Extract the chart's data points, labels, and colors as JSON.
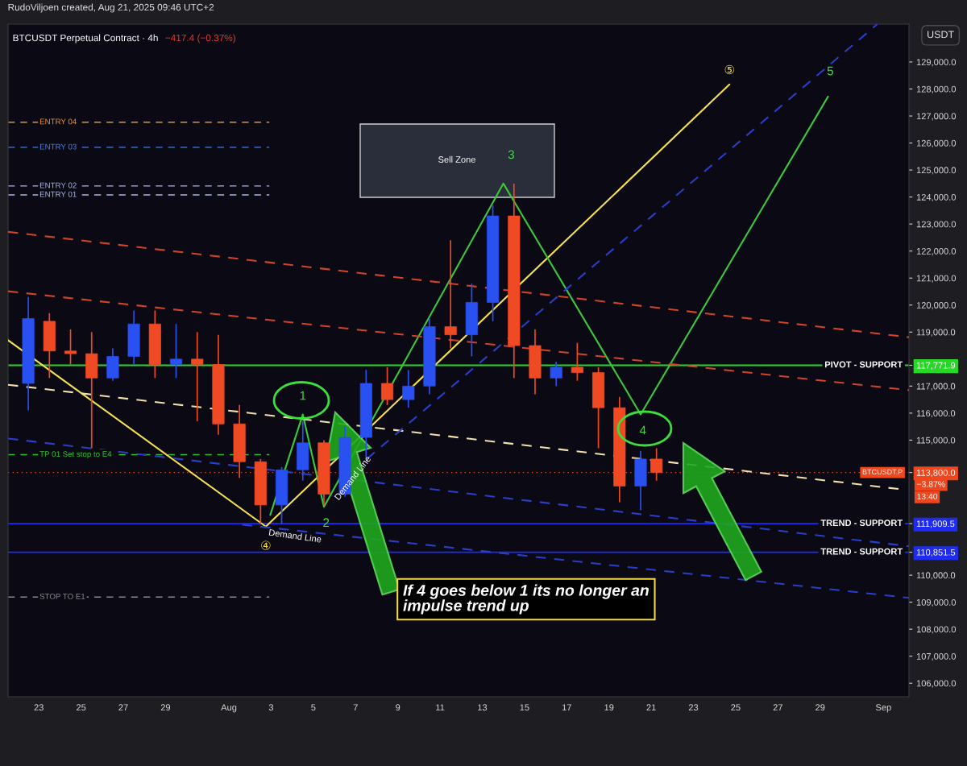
{
  "chart_data": {
    "type": "candlestick",
    "title": "BTCUSDT Perpetual Contract · 4h",
    "subtitle": "−417.4 (−0.37%)",
    "ylabel": "USDT",
    "x": [
      "2025-07-22T12:00",
      "2025-07-23T12:00",
      "2025-07-24T12:00",
      "2025-07-25T12:00",
      "2025-07-26T12:00",
      "2025-07-27T12:00",
      "2025-07-28T12:00",
      "2025-07-29T12:00",
      "2025-07-30T12:00",
      "2025-07-31T12:00",
      "2025-08-01T12:00",
      "2025-08-02T12:00",
      "2025-08-03T12:00",
      "2025-08-04T12:00",
      "2025-08-05T12:00",
      "2025-08-06T12:00",
      "2025-08-07T12:00",
      "2025-08-08T12:00",
      "2025-08-09T12:00",
      "2025-08-10T12:00",
      "2025-08-11T12:00",
      "2025-08-12T12:00",
      "2025-08-13T12:00",
      "2025-08-14T12:00",
      "2025-08-15T12:00",
      "2025-08-16T12:00",
      "2025-08-17T12:00",
      "2025-08-18T12:00",
      "2025-08-19T12:00",
      "2025-08-20T12:00",
      "2025-08-21T06:00"
    ],
    "ohlc": [
      [
        117100,
        120300,
        116100,
        119500
      ],
      [
        119400,
        119700,
        117300,
        118300
      ],
      [
        118300,
        119100,
        117800,
        118200
      ],
      [
        118200,
        119000,
        114700,
        117300
      ],
      [
        117300,
        118400,
        117200,
        118100
      ],
      [
        118100,
        119800,
        117800,
        119300
      ],
      [
        119300,
        119800,
        117300,
        117800
      ],
      [
        117800,
        119300,
        117300,
        118000
      ],
      [
        118000,
        119000,
        115700,
        117800
      ],
      [
        117800,
        118900,
        115200,
        115600
      ],
      [
        115600,
        116300,
        113600,
        114200
      ],
      [
        114200,
        114300,
        111900,
        112600
      ],
      [
        112600,
        114000,
        111900,
        113900
      ],
      [
        113900,
        115700,
        113500,
        114900
      ],
      [
        114900,
        115000,
        112600,
        113000
      ],
      [
        113000,
        115500,
        112900,
        115100
      ],
      [
        115100,
        117600,
        114300,
        117100
      ],
      [
        117100,
        117700,
        116300,
        116500
      ],
      [
        116500,
        117600,
        116200,
        117000
      ],
      [
        117000,
        119500,
        116700,
        119200
      ],
      [
        119200,
        122400,
        118400,
        118900
      ],
      [
        118900,
        120800,
        118100,
        120100
      ],
      [
        120100,
        123700,
        119400,
        123300
      ],
      [
        123300,
        124500,
        117300,
        118500
      ],
      [
        118500,
        119100,
        116700,
        117300
      ],
      [
        117300,
        117900,
        117000,
        117700
      ],
      [
        117700,
        118600,
        117200,
        117500
      ],
      [
        117500,
        117700,
        114700,
        116200
      ],
      [
        116200,
        116600,
        112700,
        113300
      ],
      [
        113300,
        114600,
        112400,
        114300
      ],
      [
        114300,
        114700,
        113500,
        113800
      ]
    ],
    "colors": [
      "#2950f0",
      "#f04a24",
      "#f04a24",
      "#f04a24",
      "#2950f0",
      "#2950f0",
      "#f04a24",
      "#2950f0",
      "#f04a24",
      "#f04a24",
      "#f04a24",
      "#f04a24",
      "#2950f0",
      "#2950f0",
      "#f04a24",
      "#2950f0",
      "#2950f0",
      "#f04a24",
      "#2950f0",
      "#2950f0",
      "#f04a24",
      "#2950f0",
      "#2950f0",
      "#f04a24",
      "#f04a24",
      "#2950f0",
      "#f04a24",
      "#f04a24",
      "#f04a24",
      "#2950f0",
      "#f04a24"
    ],
    "series": [
      {
        "type": "line",
        "color": "#f5e050",
        "line_style": "solid",
        "x": [
          "2025-07-21T13:00",
          "2025-08-02T18:00",
          "2025-08-24T17:00"
        ],
        "values": [
          118700,
          111800,
          128170
        ]
      },
      {
        "type": "line",
        "color": "#3cc83c",
        "line_style": "solid",
        "x": [
          "2025-08-02T23:00",
          "2025-08-04T12:00",
          "2025-08-05T12:00",
          "2025-08-14T00:00",
          "2025-08-20T12:00",
          "2025-08-29T09:00"
        ],
        "values": [
          112230,
          115950,
          112530,
          124500,
          115950,
          127720
        ]
      },
      {
        "type": "line",
        "color": "#f0e0b0",
        "line_style": "dashed",
        "x": [
          "2025-07-21T13:00",
          "2025-09-01T20:00"
        ],
        "values": [
          117050,
          113180
        ]
      },
      {
        "type": "line",
        "color": "#d0442a",
        "line_style": "dashed",
        "x": [
          "2025-07-21T13:00",
          "2025-09-02T05:00"
        ],
        "values": [
          122710,
          118810
        ]
      },
      {
        "type": "line",
        "color": "#d0442a",
        "line_style": "dashed",
        "x": [
          "2025-07-21T13:00",
          "2025-09-02T05:00"
        ],
        "values": [
          120510,
          116850
        ]
      },
      {
        "type": "line",
        "color": "#2a3fc8",
        "line_style": "dashed",
        "x": [
          "2025-08-06T05:00",
          "2025-08-31T17:00"
        ],
        "values": [
          113420,
          130400
        ]
      },
      {
        "type": "line",
        "color": "#2a3fc8",
        "line_style": "dashed",
        "x": [
          "2025-07-21T13:00",
          "2025-09-02T05:00"
        ],
        "values": [
          115060,
          111070
        ]
      },
      {
        "type": "line",
        "color": "#2a3fc8",
        "line_style": "dashed",
        "x": [
          "2025-08-01T15:00",
          "2025-09-02T05:00"
        ],
        "values": [
          111870,
          109160
        ]
      }
    ],
    "xlim": [
      "2025-07-21T13:00",
      "2025-09-02T05:00"
    ],
    "xticks": [
      {
        "value": "2025-07-23",
        "label": "23"
      },
      {
        "value": "2025-07-25",
        "label": "25"
      },
      {
        "value": "2025-07-27",
        "label": "27"
      },
      {
        "value": "2025-07-29",
        "label": "29"
      },
      {
        "value": "2025-08-01",
        "label": "Aug"
      },
      {
        "value": "2025-08-03",
        "label": "3"
      },
      {
        "value": "2025-08-05",
        "label": "5"
      },
      {
        "value": "2025-08-07",
        "label": "7"
      },
      {
        "value": "2025-08-09",
        "label": "9"
      },
      {
        "value": "2025-08-11",
        "label": "11"
      },
      {
        "value": "2025-08-13",
        "label": "13"
      },
      {
        "value": "2025-08-15",
        "label": "15"
      },
      {
        "value": "2025-08-17",
        "label": "17"
      },
      {
        "value": "2025-08-19",
        "label": "19"
      },
      {
        "value": "2025-08-21",
        "label": "21"
      },
      {
        "value": "2025-08-23",
        "label": "23"
      },
      {
        "value": "2025-08-25",
        "label": "25"
      },
      {
        "value": "2025-08-27",
        "label": "27"
      },
      {
        "value": "2025-08-29",
        "label": "29"
      },
      {
        "value": "2025-09-01",
        "label": "Sep"
      }
    ],
    "ylim": [
      105500,
      130400
    ],
    "yticks": [
      {
        "value": 106000,
        "label": "106,000.0"
      },
      {
        "value": 107000,
        "label": "107,000.0"
      },
      {
        "value": 108000,
        "label": "108,000.0"
      },
      {
        "value": 109000,
        "label": "109,000.0"
      },
      {
        "value": 110000,
        "label": "110,000.0"
      },
      {
        "value": 110851.5,
        "label": "110,851.5"
      },
      {
        "value": 111909.5,
        "label": "111,909.5"
      },
      {
        "value": 113800,
        "label": "113,800.0"
      },
      {
        "value": 115000,
        "label": "115,000.0"
      },
      {
        "value": 116000,
        "label": "116,000.0"
      },
      {
        "value": 117000,
        "label": "117,000.0"
      },
      {
        "value": 117771.9,
        "label": "117,771.9"
      },
      {
        "value": 119000,
        "label": "119,000.0"
      },
      {
        "value": 120000,
        "label": "120,000.0"
      },
      {
        "value": 121000,
        "label": "121,000.0"
      },
      {
        "value": 122000,
        "label": "122,000.0"
      },
      {
        "value": 123000,
        "label": "123,000.0"
      },
      {
        "value": 124000,
        "label": "124,000.0"
      },
      {
        "value": 125000,
        "label": "125,000.0"
      },
      {
        "value": 126000,
        "label": "126,000.0"
      },
      {
        "value": 127000,
        "label": "127,000.0"
      },
      {
        "value": 128000,
        "label": "128,000.0"
      },
      {
        "value": 129000,
        "label": "129,000.0"
      }
    ],
    "ref_lines": [
      {
        "axis": "y",
        "value": 126770,
        "label": "ENTRY 04",
        "color": "#e8923a",
        "line_style": "dashed"
      },
      {
        "axis": "y",
        "value": 125840,
        "label": "ENTRY 03",
        "color": "#4a7fe0",
        "line_style": "dashed"
      },
      {
        "axis": "y",
        "value": 124410,
        "label": "ENTRY 02",
        "color": "#aab4e6",
        "line_style": "dashed"
      },
      {
        "axis": "y",
        "value": 124080,
        "label": "ENTRY 01",
        "color": "#aab4e6",
        "line_style": "dashed"
      },
      {
        "axis": "y",
        "value": 117771.9,
        "label": "PIVOT - SUPPORT",
        "color": "#27d827",
        "line_style": "solid"
      },
      {
        "axis": "y",
        "value": 114460,
        "label": "TP 01 Set stop to E4",
        "color": "#2ec22e",
        "line_style": "dashed"
      },
      {
        "axis": "y",
        "value": 113800,
        "label": "BTCUSDT.P",
        "color": "#f0461e",
        "line_style": "dotted"
      },
      {
        "axis": "y",
        "value": 111909.5,
        "label": "TREND - SUPPORT",
        "color": "#1f2cf0",
        "line_style": "solid"
      },
      {
        "axis": "y",
        "value": 110851.5,
        "label": "TREND - SUPPORT",
        "color": "#1f2cf0",
        "line_style": "solid"
      },
      {
        "axis": "y",
        "value": 109190,
        "label": "STOP TO E1",
        "color": "#888888",
        "line_style": "dashed"
      }
    ],
    "annotations": [
      "RudoViljoen created, Aug 21, 2025 09:46 UTC+2",
      "If 4 goes below 1 its no longer an\nimpulse trend up",
      "−3.87%",
      "13:40",
      "Sell Zone",
      {
        "text": "1",
        "x": "2025-08-04T12:00",
        "y": 115950
      },
      {
        "text": "2",
        "x": "2025-08-05T12:00",
        "y": 112530
      },
      {
        "text": "3",
        "x": "2025-08-14T00:00",
        "y": 124500
      },
      {
        "text": "4",
        "x": "2025-08-20T12:00",
        "y": 115950
      },
      {
        "text": "5",
        "x": "2025-08-29T09:00",
        "y": 127720
      },
      {
        "text": "⑤",
        "x": "2025-08-24T17:00",
        "y": 128170
      },
      {
        "text": "④",
        "x": "2025-08-02T18:00",
        "y": 111800
      },
      {
        "text": "Demand Line",
        "x": "2025-08-02T18:00",
        "y": 111800
      },
      {
        "text": "Demand Line",
        "x": "2025-08-06T06:00",
        "y": 114410
      }
    ]
  }
}
